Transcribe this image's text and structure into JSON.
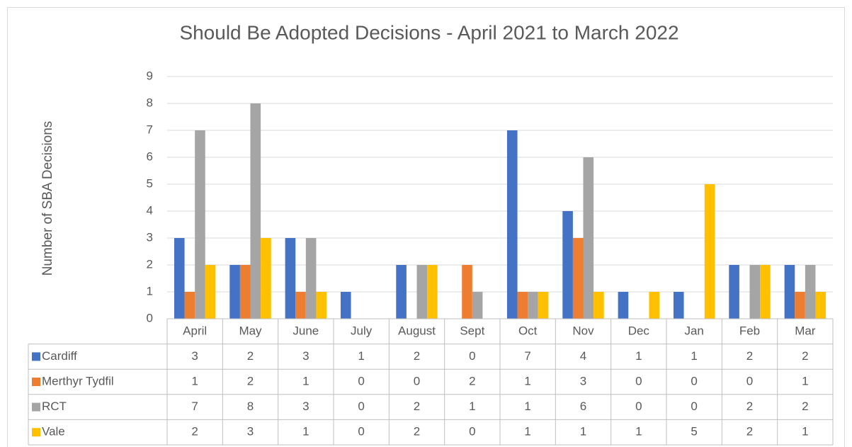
{
  "chart_data": {
    "type": "bar",
    "title": "Should Be Adopted Decisions - April 2021 to March 2022",
    "y_label": "Number of SBA Decisions",
    "categories": [
      "April",
      "May",
      "June",
      "July",
      "August",
      "Sept",
      "Oct",
      "Nov",
      "Dec",
      "Jan",
      "Feb",
      "Mar"
    ],
    "series": [
      {
        "name": "Cardiff",
        "color": "#4472c4",
        "values": [
          3,
          2,
          3,
          1,
          2,
          0,
          7,
          4,
          1,
          1,
          2,
          2
        ]
      },
      {
        "name": "Merthyr Tydfil",
        "color": "#ed7d31",
        "values": [
          1,
          2,
          1,
          0,
          0,
          2,
          1,
          3,
          0,
          0,
          0,
          1
        ]
      },
      {
        "name": "RCT",
        "color": "#a5a5a5",
        "values": [
          7,
          8,
          3,
          0,
          2,
          1,
          1,
          6,
          0,
          0,
          2,
          2
        ]
      },
      {
        "name": "Vale",
        "color": "#ffc000",
        "values": [
          2,
          3,
          1,
          0,
          2,
          0,
          1,
          1,
          1,
          5,
          2,
          1
        ]
      }
    ],
    "ylim": [
      0,
      9
    ],
    "yticks": [
      0,
      1,
      2,
      3,
      4,
      5,
      6,
      7,
      8,
      9
    ],
    "grid": true
  }
}
